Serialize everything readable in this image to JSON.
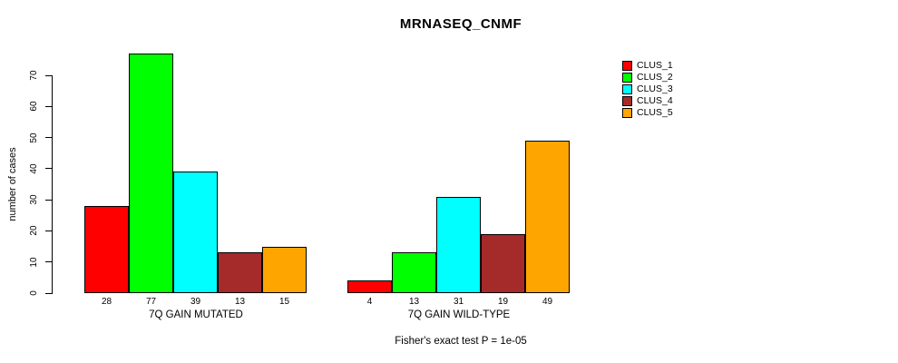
{
  "title": "MRNASEQ_CNMF",
  "chart_data": {
    "type": "bar",
    "title": "MRNASEQ_CNMF",
    "ylabel": "number of cases",
    "xlabel": "",
    "footnote": "Fisher's exact test P = 1e-05",
    "groups": [
      "7Q GAIN MUTATED",
      "7Q GAIN WILD-TYPE"
    ],
    "series": [
      {
        "name": "CLUS_1",
        "color": "#FF0000",
        "values": [
          28,
          4
        ]
      },
      {
        "name": "CLUS_2",
        "color": "#00FF00",
        "values": [
          77,
          13
        ]
      },
      {
        "name": "CLUS_3",
        "color": "#00FFFF",
        "values": [
          39,
          31
        ]
      },
      {
        "name": "CLUS_4",
        "color": "#A52A2A",
        "values": [
          13,
          19
        ]
      },
      {
        "name": "CLUS_5",
        "color": "#FFA500",
        "values": [
          15,
          49
        ]
      }
    ],
    "yticks": [
      0,
      10,
      20,
      30,
      40,
      50,
      60,
      70
    ],
    "ylim": [
      0,
      77
    ],
    "grid": false,
    "legend_position": "right",
    "legend_entries": [
      "CLUS_1",
      "CLUS_2",
      "CLUS_3",
      "CLUS_4",
      "CLUS_5"
    ]
  }
}
